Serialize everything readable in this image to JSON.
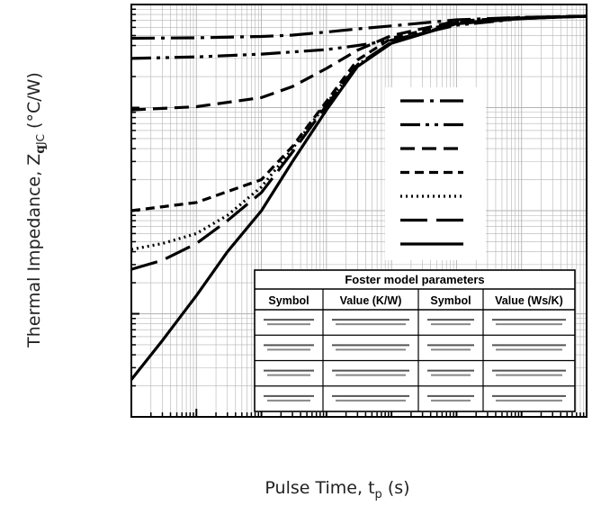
{
  "chart_data": {
    "type": "line",
    "title": "",
    "xlabel": {
      "main": "Pulse Time, t",
      "sub": "p",
      "unit": " (s)"
    },
    "ylabel": {
      "main": "Thermal Impedance, Z",
      "sub_symbol": "q",
      "sub": "JC",
      "unit": " (°C/W)"
    },
    "x_scale": "log",
    "y_scale": "log",
    "xlim": [
      1e-06,
      10
    ],
    "ylim": [
      0.001,
      10
    ],
    "grid": true,
    "legend_placement": "right-center",
    "series": [
      {
        "style": "long-dash-dot",
        "x": [
          1e-06,
          1e-05,
          0.0001,
          0.0003,
          0.001,
          0.003,
          0.01,
          0.1,
          1,
          10
        ],
        "y": [
          4.7,
          4.75,
          4.9,
          5.05,
          5.4,
          5.8,
          6.2,
          7.1,
          7.5,
          7.7
        ]
      },
      {
        "style": "dash-dot-dot",
        "x": [
          1e-06,
          1e-05,
          0.0001,
          0.001,
          0.003,
          0.01,
          0.1,
          1,
          10
        ],
        "y": [
          3.0,
          3.1,
          3.3,
          3.65,
          4.0,
          4.5,
          6.3,
          7.3,
          7.7
        ]
      },
      {
        "style": "dashed",
        "x": [
          1e-06,
          1e-05,
          0.0001,
          0.0003,
          0.001,
          0.003,
          0.01,
          0.1,
          1,
          10
        ],
        "y": [
          0.95,
          1.02,
          1.25,
          1.6,
          2.4,
          3.6,
          5.0,
          6.9,
          7.5,
          7.7
        ]
      },
      {
        "style": "short-dash",
        "x": [
          1e-06,
          1e-05,
          0.0001,
          0.0003,
          0.001,
          0.003,
          0.01,
          0.1,
          1,
          10
        ],
        "y": [
          0.1,
          0.12,
          0.2,
          0.42,
          1.15,
          2.9,
          4.7,
          6.7,
          7.4,
          7.7
        ]
      },
      {
        "style": "dotted",
        "x": [
          1e-06,
          3e-06,
          1e-05,
          3e-05,
          0.0001,
          0.0003,
          0.001,
          0.003,
          0.01,
          0.1,
          1,
          10
        ],
        "y": [
          0.042,
          0.048,
          0.06,
          0.09,
          0.17,
          0.4,
          1.1,
          2.6,
          4.3,
          6.6,
          7.4,
          7.7
        ]
      },
      {
        "style": "long-dash",
        "x": [
          1e-06,
          3e-06,
          1e-05,
          3e-05,
          0.0001,
          0.0003,
          0.001,
          0.003,
          0.01,
          0.1,
          1,
          10
        ],
        "y": [
          0.027,
          0.033,
          0.048,
          0.08,
          0.15,
          0.37,
          1.05,
          2.6,
          4.3,
          6.6,
          7.4,
          7.7
        ]
      },
      {
        "style": "solid",
        "x": [
          1e-06,
          3e-06,
          1e-05,
          3e-05,
          0.0001,
          0.0003,
          0.001,
          0.003,
          0.01,
          0.1,
          1,
          10
        ],
        "y": [
          0.0023,
          0.0055,
          0.015,
          0.04,
          0.1,
          0.3,
          0.95,
          2.5,
          4.2,
          6.5,
          7.3,
          7.7
        ]
      }
    ]
  },
  "table": {
    "title": "Foster model parameters",
    "headers": [
      "Symbol",
      "Value (K/W)",
      "Symbol",
      "Value (Ws/K)"
    ]
  },
  "colors": {
    "ink": "#000000",
    "grid": "#b3b3b3",
    "background": "#ffffff"
  }
}
